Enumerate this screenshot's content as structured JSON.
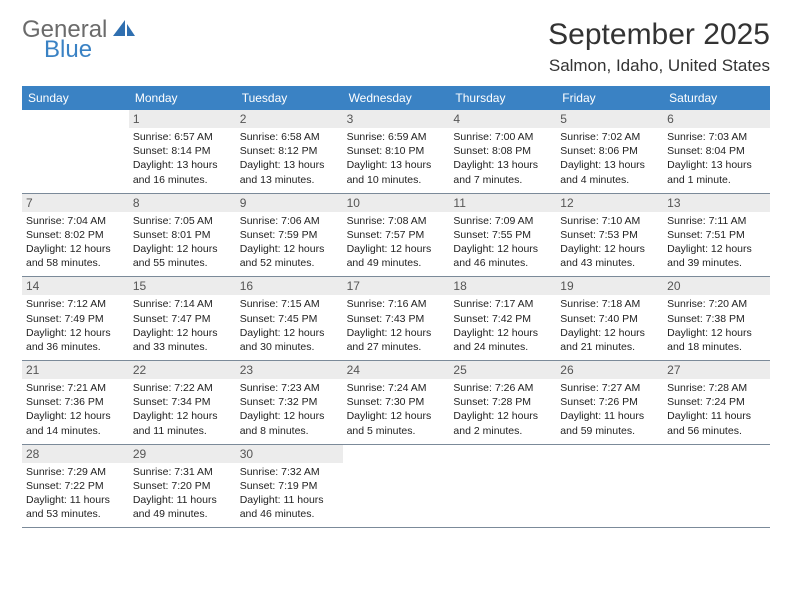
{
  "brand": {
    "general": "General",
    "blue": "Blue"
  },
  "header": {
    "month_title": "September 2025",
    "location": "Salmon, Idaho, United States"
  },
  "colors": {
    "header_bg": "#3a82c4",
    "header_text": "#ffffff",
    "daynum_bg": "#ececec",
    "rule": "#7b8a99",
    "logo_gray": "#6b6b6b",
    "logo_blue": "#3a82c4"
  },
  "weekdays": [
    "Sunday",
    "Monday",
    "Tuesday",
    "Wednesday",
    "Thursday",
    "Friday",
    "Saturday"
  ],
  "weeks": [
    [
      {
        "n": "",
        "sunrise": "",
        "sunset": "",
        "daylight": ""
      },
      {
        "n": "1",
        "sunrise": "Sunrise: 6:57 AM",
        "sunset": "Sunset: 8:14 PM",
        "daylight": "Daylight: 13 hours and 16 minutes."
      },
      {
        "n": "2",
        "sunrise": "Sunrise: 6:58 AM",
        "sunset": "Sunset: 8:12 PM",
        "daylight": "Daylight: 13 hours and 13 minutes."
      },
      {
        "n": "3",
        "sunrise": "Sunrise: 6:59 AM",
        "sunset": "Sunset: 8:10 PM",
        "daylight": "Daylight: 13 hours and 10 minutes."
      },
      {
        "n": "4",
        "sunrise": "Sunrise: 7:00 AM",
        "sunset": "Sunset: 8:08 PM",
        "daylight": "Daylight: 13 hours and 7 minutes."
      },
      {
        "n": "5",
        "sunrise": "Sunrise: 7:02 AM",
        "sunset": "Sunset: 8:06 PM",
        "daylight": "Daylight: 13 hours and 4 minutes."
      },
      {
        "n": "6",
        "sunrise": "Sunrise: 7:03 AM",
        "sunset": "Sunset: 8:04 PM",
        "daylight": "Daylight: 13 hours and 1 minute."
      }
    ],
    [
      {
        "n": "7",
        "sunrise": "Sunrise: 7:04 AM",
        "sunset": "Sunset: 8:02 PM",
        "daylight": "Daylight: 12 hours and 58 minutes."
      },
      {
        "n": "8",
        "sunrise": "Sunrise: 7:05 AM",
        "sunset": "Sunset: 8:01 PM",
        "daylight": "Daylight: 12 hours and 55 minutes."
      },
      {
        "n": "9",
        "sunrise": "Sunrise: 7:06 AM",
        "sunset": "Sunset: 7:59 PM",
        "daylight": "Daylight: 12 hours and 52 minutes."
      },
      {
        "n": "10",
        "sunrise": "Sunrise: 7:08 AM",
        "sunset": "Sunset: 7:57 PM",
        "daylight": "Daylight: 12 hours and 49 minutes."
      },
      {
        "n": "11",
        "sunrise": "Sunrise: 7:09 AM",
        "sunset": "Sunset: 7:55 PM",
        "daylight": "Daylight: 12 hours and 46 minutes."
      },
      {
        "n": "12",
        "sunrise": "Sunrise: 7:10 AM",
        "sunset": "Sunset: 7:53 PM",
        "daylight": "Daylight: 12 hours and 43 minutes."
      },
      {
        "n": "13",
        "sunrise": "Sunrise: 7:11 AM",
        "sunset": "Sunset: 7:51 PM",
        "daylight": "Daylight: 12 hours and 39 minutes."
      }
    ],
    [
      {
        "n": "14",
        "sunrise": "Sunrise: 7:12 AM",
        "sunset": "Sunset: 7:49 PM",
        "daylight": "Daylight: 12 hours and 36 minutes."
      },
      {
        "n": "15",
        "sunrise": "Sunrise: 7:14 AM",
        "sunset": "Sunset: 7:47 PM",
        "daylight": "Daylight: 12 hours and 33 minutes."
      },
      {
        "n": "16",
        "sunrise": "Sunrise: 7:15 AM",
        "sunset": "Sunset: 7:45 PM",
        "daylight": "Daylight: 12 hours and 30 minutes."
      },
      {
        "n": "17",
        "sunrise": "Sunrise: 7:16 AM",
        "sunset": "Sunset: 7:43 PM",
        "daylight": "Daylight: 12 hours and 27 minutes."
      },
      {
        "n": "18",
        "sunrise": "Sunrise: 7:17 AM",
        "sunset": "Sunset: 7:42 PM",
        "daylight": "Daylight: 12 hours and 24 minutes."
      },
      {
        "n": "19",
        "sunrise": "Sunrise: 7:18 AM",
        "sunset": "Sunset: 7:40 PM",
        "daylight": "Daylight: 12 hours and 21 minutes."
      },
      {
        "n": "20",
        "sunrise": "Sunrise: 7:20 AM",
        "sunset": "Sunset: 7:38 PM",
        "daylight": "Daylight: 12 hours and 18 minutes."
      }
    ],
    [
      {
        "n": "21",
        "sunrise": "Sunrise: 7:21 AM",
        "sunset": "Sunset: 7:36 PM",
        "daylight": "Daylight: 12 hours and 14 minutes."
      },
      {
        "n": "22",
        "sunrise": "Sunrise: 7:22 AM",
        "sunset": "Sunset: 7:34 PM",
        "daylight": "Daylight: 12 hours and 11 minutes."
      },
      {
        "n": "23",
        "sunrise": "Sunrise: 7:23 AM",
        "sunset": "Sunset: 7:32 PM",
        "daylight": "Daylight: 12 hours and 8 minutes."
      },
      {
        "n": "24",
        "sunrise": "Sunrise: 7:24 AM",
        "sunset": "Sunset: 7:30 PM",
        "daylight": "Daylight: 12 hours and 5 minutes."
      },
      {
        "n": "25",
        "sunrise": "Sunrise: 7:26 AM",
        "sunset": "Sunset: 7:28 PM",
        "daylight": "Daylight: 12 hours and 2 minutes."
      },
      {
        "n": "26",
        "sunrise": "Sunrise: 7:27 AM",
        "sunset": "Sunset: 7:26 PM",
        "daylight": "Daylight: 11 hours and 59 minutes."
      },
      {
        "n": "27",
        "sunrise": "Sunrise: 7:28 AM",
        "sunset": "Sunset: 7:24 PM",
        "daylight": "Daylight: 11 hours and 56 minutes."
      }
    ],
    [
      {
        "n": "28",
        "sunrise": "Sunrise: 7:29 AM",
        "sunset": "Sunset: 7:22 PM",
        "daylight": "Daylight: 11 hours and 53 minutes."
      },
      {
        "n": "29",
        "sunrise": "Sunrise: 7:31 AM",
        "sunset": "Sunset: 7:20 PM",
        "daylight": "Daylight: 11 hours and 49 minutes."
      },
      {
        "n": "30",
        "sunrise": "Sunrise: 7:32 AM",
        "sunset": "Sunset: 7:19 PM",
        "daylight": "Daylight: 11 hours and 46 minutes."
      },
      {
        "n": "",
        "sunrise": "",
        "sunset": "",
        "daylight": ""
      },
      {
        "n": "",
        "sunrise": "",
        "sunset": "",
        "daylight": ""
      },
      {
        "n": "",
        "sunrise": "",
        "sunset": "",
        "daylight": ""
      },
      {
        "n": "",
        "sunrise": "",
        "sunset": "",
        "daylight": ""
      }
    ]
  ]
}
